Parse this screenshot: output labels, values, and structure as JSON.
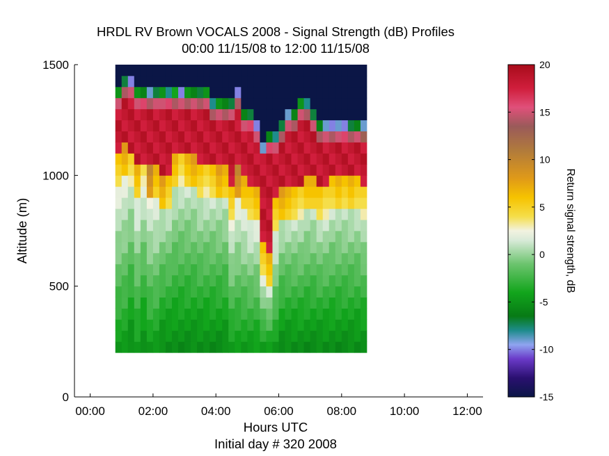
{
  "chart_data": {
    "type": "heatmap",
    "title": "HRDL RV Brown VOCALS 2008 - Signal Strength (dB) Profiles",
    "subtitle": "00:00 11/15/08 to 12:00 11/15/08",
    "xlabel": "Hours UTC",
    "xlabel2": "Initial day # 320  2008",
    "ylabel": "Altitude (m)",
    "xlim": [
      -0.5,
      12.5
    ],
    "ylim": [
      0,
      1500
    ],
    "x_ticks": [
      "00:00",
      "02:00",
      "04:00",
      "06:00",
      "08:00",
      "10:00",
      "12:00"
    ],
    "x_tick_values": [
      0,
      2,
      4,
      6,
      8,
      10,
      12
    ],
    "y_ticks": [
      "0",
      "500",
      "1000",
      "1500"
    ],
    "y_tick_values": [
      0,
      500,
      1000,
      1500
    ],
    "colorbar": {
      "label": "Return signal strength, dB",
      "min": -15,
      "max": 20,
      "ticks": [
        "-15",
        "-10",
        "-5",
        "0",
        "5",
        "10",
        "15",
        "20"
      ],
      "tick_values": [
        -15,
        -10,
        -5,
        0,
        5,
        10,
        15,
        20
      ],
      "colormap": [
        {
          "v": -15,
          "c": "#0b1646"
        },
        {
          "v": -13,
          "c": "#2a1070"
        },
        {
          "v": -11,
          "c": "#6a3ac8"
        },
        {
          "v": -9.5,
          "c": "#8fa4f0"
        },
        {
          "v": -8,
          "c": "#1e8c8c"
        },
        {
          "v": -6.5,
          "c": "#077a15"
        },
        {
          "v": -4,
          "c": "#12a51c"
        },
        {
          "v": -1,
          "c": "#6cc46e"
        },
        {
          "v": 1.5,
          "c": "#d8ead8"
        },
        {
          "v": 2.5,
          "c": "#f2f2e0"
        },
        {
          "v": 4,
          "c": "#f5de4a"
        },
        {
          "v": 6,
          "c": "#f6c300"
        },
        {
          "v": 8,
          "c": "#e09a18"
        },
        {
          "v": 11,
          "c": "#b07a3c"
        },
        {
          "v": 13.5,
          "c": "#9a5a5a"
        },
        {
          "v": 15.5,
          "c": "#e0507a"
        },
        {
          "v": 17.5,
          "c": "#d01e3c"
        },
        {
          "v": 20,
          "c": "#a80c1a"
        }
      ]
    },
    "time_start": 0.8,
    "time_step": 0.2,
    "altitude_start": 200,
    "altitude_step": 50,
    "profiles": [
      {
        "top": 1350,
        "ml": 0,
        "bh": 1100,
        "tv": [
          -5,
          4,
          15
        ]
      },
      {
        "top": 1400,
        "ml": 0,
        "bh": 1150,
        "tv": [
          -7,
          6,
          14
        ]
      },
      {
        "top": 1400,
        "ml": 1,
        "bh": 1100,
        "tv": [
          -10,
          3,
          15
        ]
      },
      {
        "top": 1350,
        "ml": 0,
        "bh": 1050,
        "tv": [
          -5,
          5,
          15
        ]
      },
      {
        "top": 1350,
        "ml": 1,
        "bh": 1050,
        "tv": [
          -6,
          2,
          16
        ]
      },
      {
        "top": 1350,
        "ml": 0,
        "bh": 1050,
        "tv": [
          -9,
          8,
          14
        ]
      },
      {
        "top": 1350,
        "ml": 0,
        "bh": 1050,
        "tv": [
          -7,
          5,
          15
        ]
      },
      {
        "top": 1350,
        "ml": 1,
        "bh": 1000,
        "tv": [
          -5,
          6,
          15
        ]
      },
      {
        "top": 1350,
        "ml": 1,
        "bh": 1000,
        "tv": [
          -8,
          4,
          16
        ]
      },
      {
        "top": 1350,
        "ml": 1,
        "bh": 1100,
        "tv": [
          -4,
          5,
          14
        ]
      },
      {
        "top": 1350,
        "ml": 1,
        "bh": 1100,
        "tv": [
          -10,
          3,
          15
        ]
      },
      {
        "top": 1350,
        "ml": 1,
        "bh": 1100,
        "tv": [
          -5,
          5,
          14
        ]
      },
      {
        "top": 1350,
        "ml": 1,
        "bh": 1100,
        "tv": [
          -6,
          6,
          15
        ]
      },
      {
        "top": 1350,
        "ml": 1,
        "bh": 1050,
        "tv": [
          -7,
          4,
          14
        ]
      },
      {
        "top": 1350,
        "ml": 1,
        "bh": 1050,
        "tv": [
          -5,
          3,
          15
        ]
      },
      {
        "top": 1300,
        "ml": 1,
        "bh": 1050,
        "tv": [
          -8,
          4,
          14
        ]
      },
      {
        "top": 1300,
        "ml": 1,
        "bh": 1050,
        "tv": [
          -5,
          6,
          15
        ]
      },
      {
        "top": 1300,
        "ml": 1,
        "bh": 1050,
        "tv": [
          -6,
          5,
          14
        ]
      },
      {
        "top": 1300,
        "ml": 0,
        "bh": 950,
        "tv": [
          -7,
          4,
          15
        ]
      },
      {
        "top": 1350,
        "ml": 0,
        "bh": 1050,
        "tv": [
          -10,
          8,
          14
        ]
      },
      {
        "top": 1250,
        "ml": 0,
        "bh": 1000,
        "tv": [
          -6,
          5,
          15
        ]
      },
      {
        "top": 1250,
        "ml": 0,
        "bh": 950,
        "tv": [
          -7,
          4,
          16
        ]
      },
      {
        "top": 1200,
        "ml": 0,
        "bh": 950,
        "tv": [
          -10,
          5,
          15
        ]
      },
      {
        "top": 1100,
        "ml": 0,
        "bh": 700,
        "tv": [
          -9,
          4,
          18
        ]
      },
      {
        "top": 1150,
        "ml": 0,
        "bh": 650,
        "tv": [
          -6,
          5,
          16
        ]
      },
      {
        "top": 1150,
        "ml": 0,
        "bh": 900,
        "tv": [
          -8,
          4,
          15
        ]
      },
      {
        "top": 1200,
        "ml": 1,
        "bh": 950,
        "tv": [
          -7,
          6,
          14
        ]
      },
      {
        "top": 1250,
        "ml": 1,
        "bh": 950,
        "tv": [
          -9,
          5,
          15
        ]
      },
      {
        "top": 1250,
        "ml": 1,
        "bh": 950,
        "tv": [
          -6,
          4,
          14
        ]
      },
      {
        "top": 1300,
        "ml": 1,
        "bh": 950,
        "tv": [
          -5,
          3,
          15
        ]
      },
      {
        "top": 1300,
        "ml": 1,
        "bh": 1000,
        "tv": [
          -8,
          5,
          14
        ]
      },
      {
        "top": 1250,
        "ml": 1,
        "bh": 1000,
        "tv": [
          -7,
          5,
          15
        ]
      },
      {
        "top": 1200,
        "ml": 1,
        "bh": 950,
        "tv": [
          -6,
          4,
          14
        ]
      },
      {
        "top": 1200,
        "ml": 1,
        "bh": 950,
        "tv": [
          -9,
          3,
          15
        ]
      },
      {
        "top": 1200,
        "ml": 1,
        "bh": 1000,
        "tv": [
          -10,
          4,
          14
        ]
      },
      {
        "top": 1200,
        "ml": 1,
        "bh": 1000,
        "tv": [
          -9,
          5,
          15
        ]
      },
      {
        "top": 1200,
        "ml": 1,
        "bh": 1000,
        "tv": [
          -10,
          4,
          16
        ]
      },
      {
        "top": 1200,
        "ml": 1,
        "bh": 1000,
        "tv": [
          -7,
          5,
          14
        ]
      },
      {
        "top": 1200,
        "ml": 1,
        "bh": 1000,
        "tv": [
          -6,
          4,
          15
        ]
      },
      {
        "top": 1200,
        "ml": 1,
        "bh": 950,
        "tv": [
          -9,
          3,
          13
        ]
      }
    ]
  }
}
